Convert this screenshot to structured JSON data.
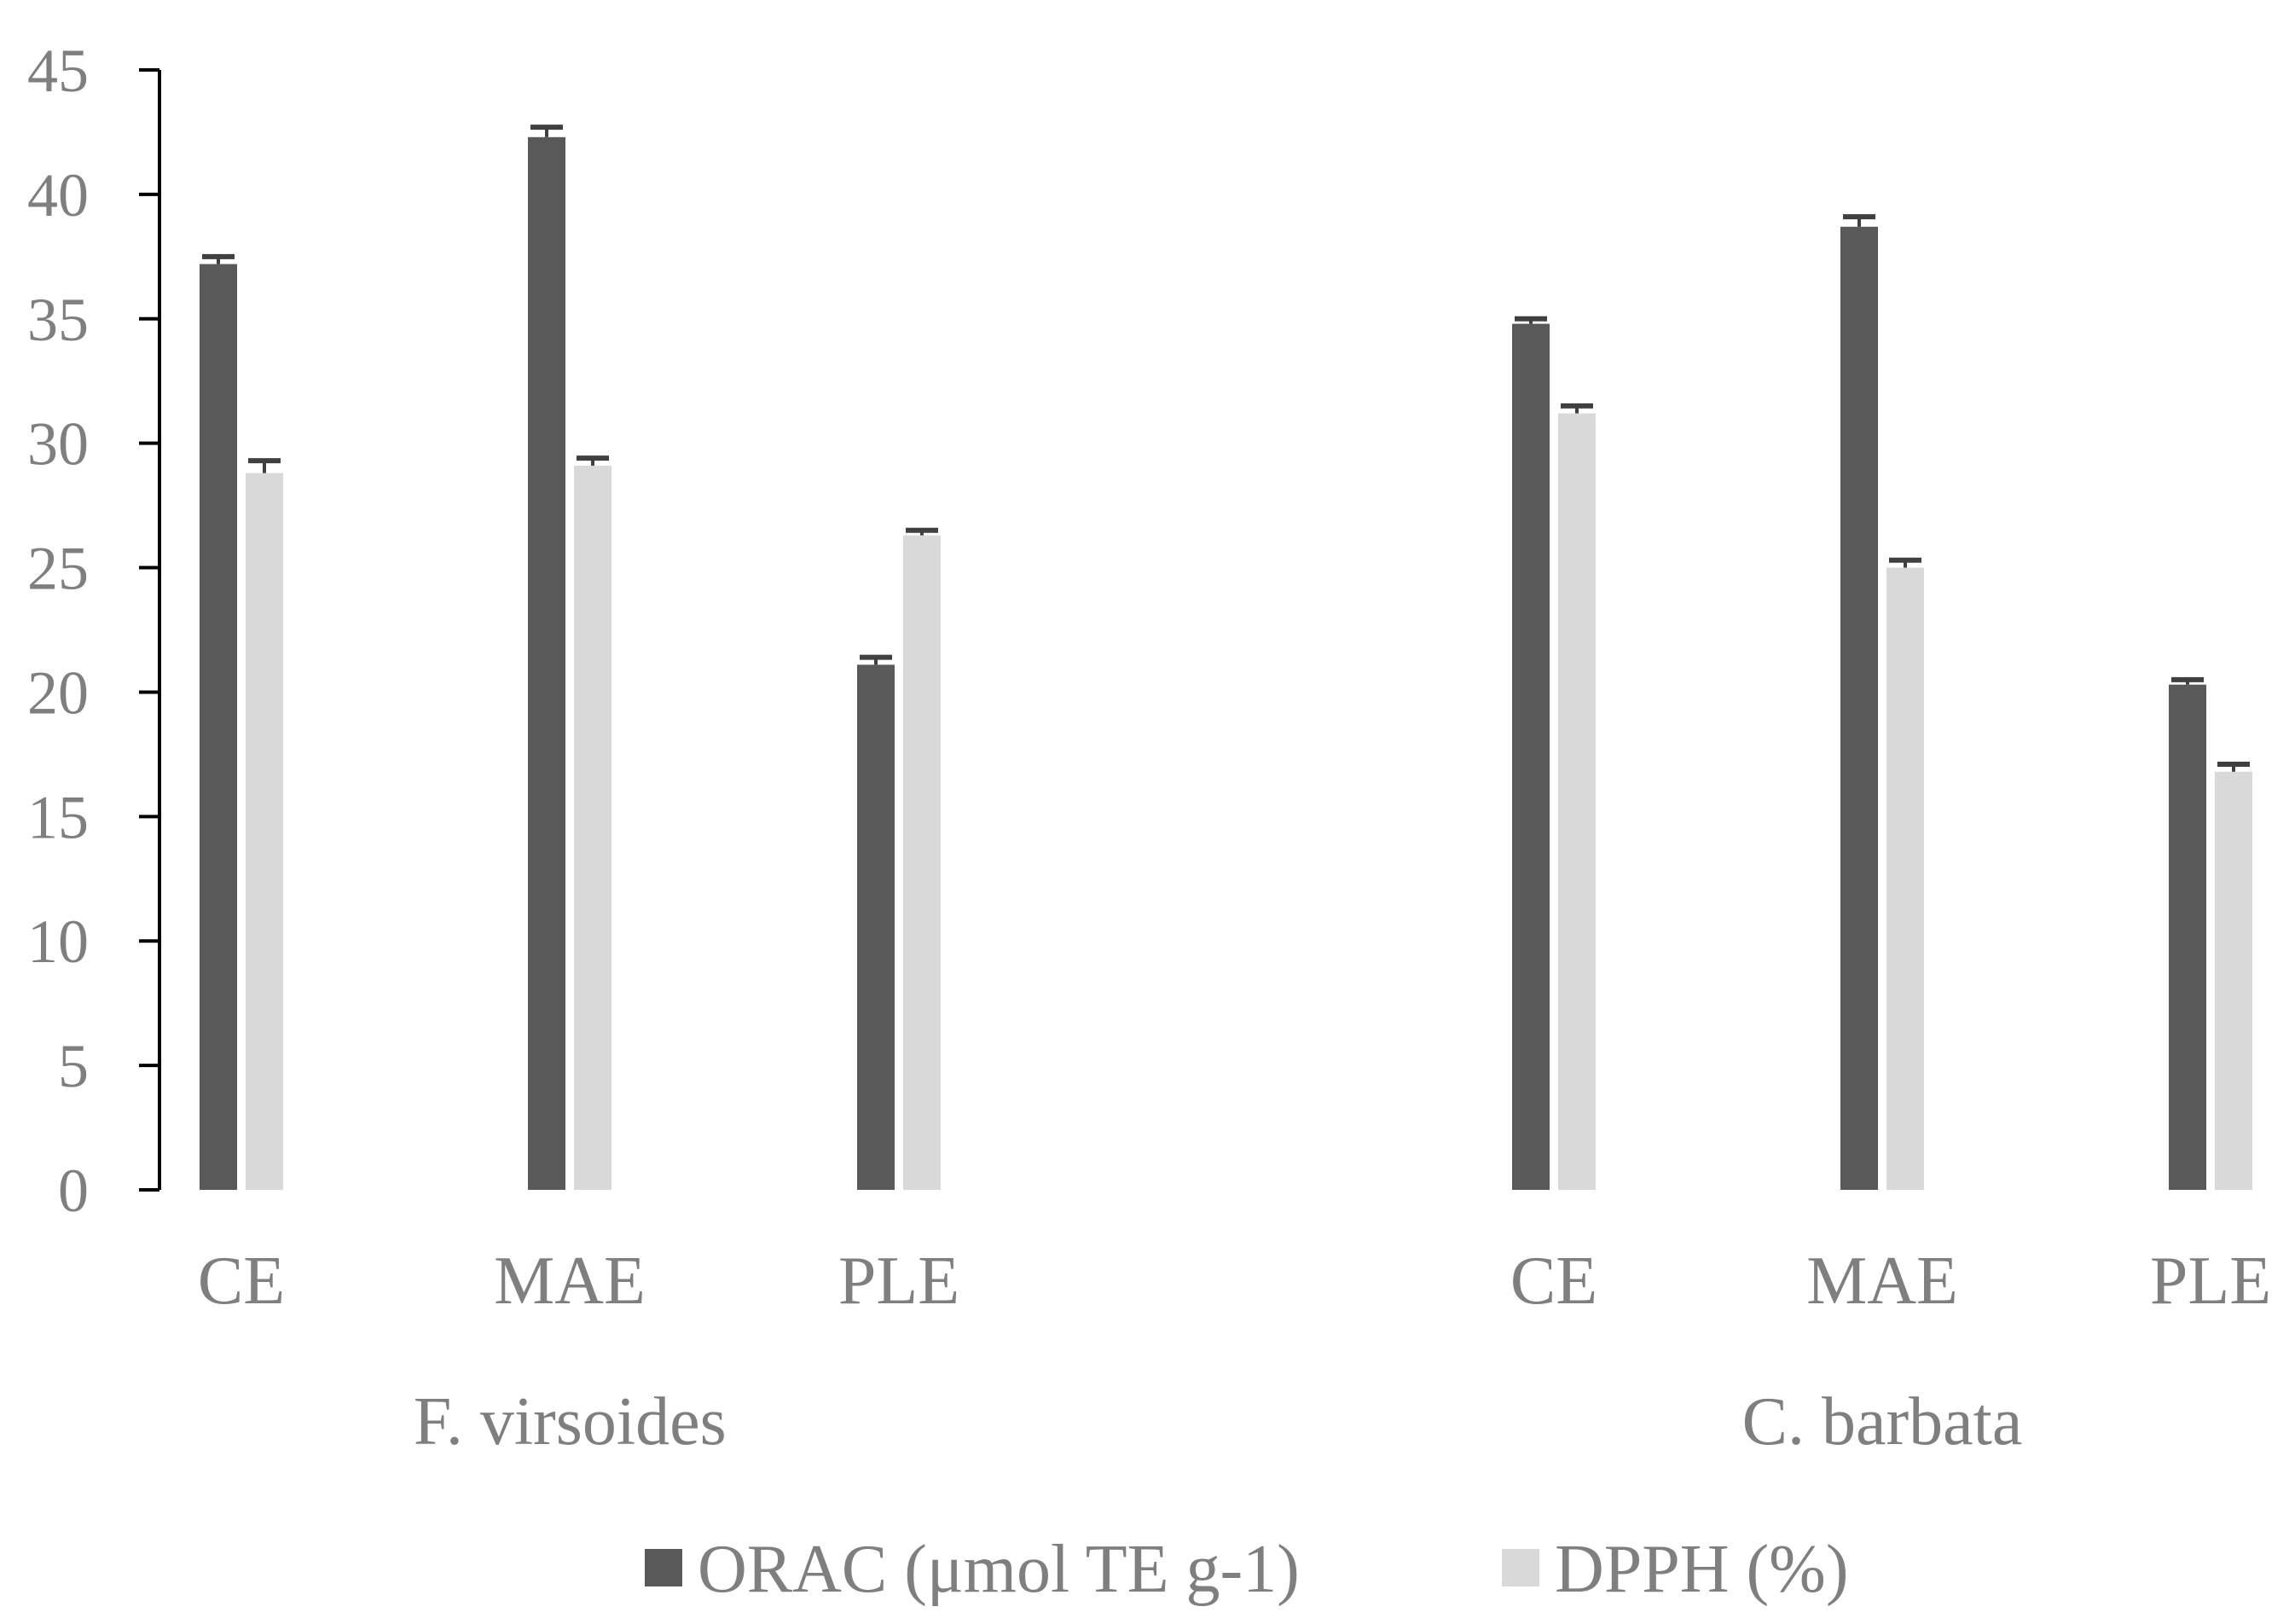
{
  "chart_data": {
    "type": "bar",
    "groups": [
      {
        "name": "F. virsoides",
        "categories": [
          "CE",
          "MAE",
          "PLE"
        ]
      },
      {
        "name": "C. barbata",
        "categories": [
          "CE",
          "MAE",
          "PLE"
        ]
      }
    ],
    "series": [
      {
        "name": "ORAC (μmol TE g-1)",
        "color": "#595959",
        "values": [
          37.2,
          42.3,
          21.1,
          34.8,
          38.7,
          20.3
        ],
        "errors": [
          0.3,
          0.4,
          0.3,
          0.2,
          0.4,
          0.2
        ]
      },
      {
        "name": "DPPH (%)",
        "color": "#d9d9d9",
        "values": [
          28.8,
          29.1,
          26.3,
          31.2,
          25.0,
          16.8
        ],
        "errors": [
          0.5,
          0.3,
          0.2,
          0.3,
          0.3,
          0.3
        ]
      }
    ],
    "ylim": [
      0,
      45
    ],
    "yticks": [
      0,
      5,
      10,
      15,
      20,
      25,
      30,
      35,
      40,
      45
    ],
    "title": "",
    "xlabel": "",
    "ylabel": "",
    "grid": false,
    "legend_position": "bottom"
  }
}
